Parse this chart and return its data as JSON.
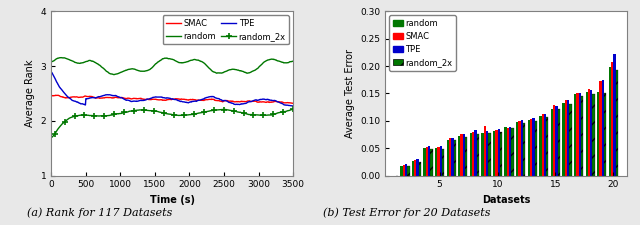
{
  "left_title": "(a) Rank for 117 Datasets",
  "left_xlabel": "Time (s)",
  "left_ylabel": "Average Rank",
  "left_xlim": [
    0,
    3500
  ],
  "left_ylim": [
    1,
    4
  ],
  "left_yticks": [
    1,
    2,
    3,
    4
  ],
  "left_xticks": [
    0,
    500,
    1000,
    1500,
    2000,
    2500,
    3000,
    3500
  ],
  "right_title": "(b) Test Error for 20 Datasets",
  "right_xlabel": "Datasets",
  "right_ylabel": "Average Test Error",
  "right_ylim": [
    0,
    0.3
  ],
  "right_yticks": [
    0.0,
    0.05,
    0.1,
    0.15,
    0.2,
    0.25,
    0.3
  ],
  "smac_color": "#ff0000",
  "tpe_color": "#0000cc",
  "random_color": "#007700",
  "random2x_color": "#007700",
  "bar_random": [
    0.0,
    0.018,
    0.026,
    0.05,
    0.05,
    0.065,
    0.073,
    0.077,
    0.078,
    0.082,
    0.088,
    0.097,
    0.102,
    0.108,
    0.122,
    0.133,
    0.148,
    0.152,
    0.153,
    0.198
  ],
  "bar_smac": [
    0.0,
    0.02,
    0.028,
    0.052,
    0.052,
    0.068,
    0.075,
    0.08,
    0.09,
    0.084,
    0.086,
    0.1,
    0.103,
    0.112,
    0.128,
    0.138,
    0.151,
    0.158,
    0.172,
    0.207
  ],
  "bar_tpe": [
    0.0,
    0.021,
    0.03,
    0.054,
    0.054,
    0.069,
    0.076,
    0.083,
    0.081,
    0.085,
    0.088,
    0.102,
    0.105,
    0.113,
    0.127,
    0.138,
    0.151,
    0.156,
    0.174,
    0.222
  ],
  "bar_random2x": [
    0.0,
    0.017,
    0.025,
    0.049,
    0.048,
    0.064,
    0.071,
    0.076,
    0.077,
    0.08,
    0.086,
    0.096,
    0.1,
    0.106,
    0.121,
    0.131,
    0.145,
    0.149,
    0.15,
    0.193
  ],
  "bg_color": "#e8e8e8",
  "plot_bg": "#ffffff"
}
